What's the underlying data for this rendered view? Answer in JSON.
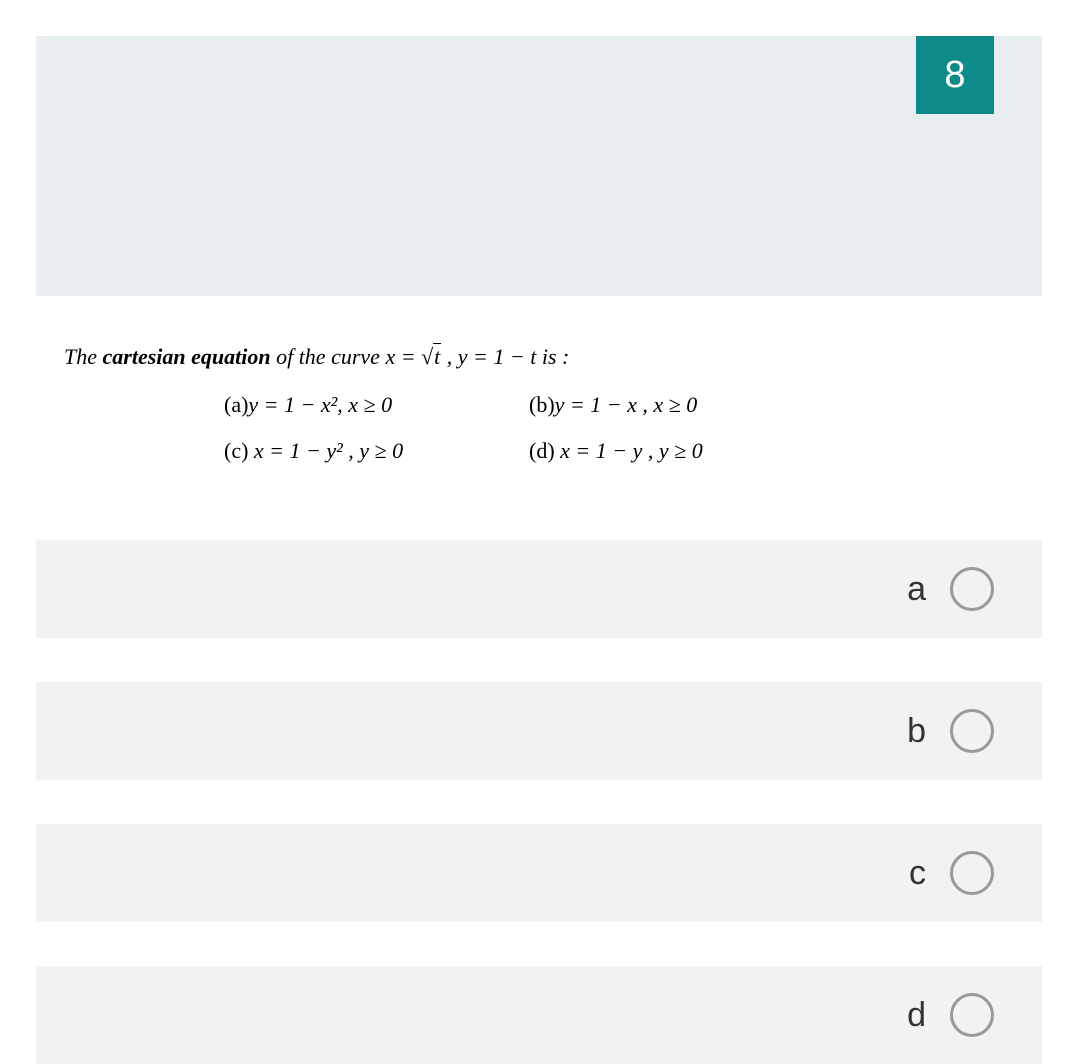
{
  "question": {
    "number": "8",
    "stem_prefix": "The ",
    "stem_bold": "cartesian equation",
    "stem_mid": " of the curve  ",
    "stem_math_x": "x = ",
    "stem_sqrt_arg": "t",
    "stem_math_y": "  , y = 1 − t",
    "stem_suffix": "  is :",
    "options": {
      "a": {
        "label": "(a)",
        "math": "y = 1 − x²,   x ≥ 0"
      },
      "b": {
        "label": "(b)",
        "math": "y = 1 − x  , x ≥ 0"
      },
      "c": {
        "label": "(c)",
        "math": " x = 1 − y² , y ≥ 0"
      },
      "d": {
        "label": "(d)",
        "math": " x = 1 − y , y ≥ 0"
      }
    }
  },
  "answers": [
    {
      "label": "a"
    },
    {
      "label": "b"
    },
    {
      "label": "c"
    },
    {
      "label": "d"
    }
  ],
  "colors": {
    "badge_bg": "#0e8a8a",
    "header_bg": "#e8edf0",
    "answer_row_bg": "#f2f2f2",
    "radio_border": "#999999"
  }
}
